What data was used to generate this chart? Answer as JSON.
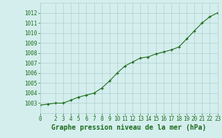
{
  "x": [
    0,
    1,
    2,
    3,
    4,
    5,
    6,
    7,
    8,
    9,
    10,
    11,
    12,
    13,
    14,
    15,
    16,
    17,
    18,
    19,
    20,
    21,
    22,
    23
  ],
  "y": [
    1002.8,
    1002.9,
    1003.0,
    1003.0,
    1003.3,
    1003.6,
    1003.8,
    1004.0,
    1004.5,
    1005.2,
    1006.0,
    1006.7,
    1007.1,
    1007.5,
    1007.6,
    1007.9,
    1008.1,
    1008.3,
    1008.6,
    1009.4,
    1010.2,
    1011.0,
    1011.6,
    1012.0
  ],
  "line_color": "#1a6b1a",
  "marker": "+",
  "marker_color": "#1a6b1a",
  "bg_color": "#d4eeed",
  "grid_color": "#b0cece",
  "title": "Graphe pression niveau de la mer (hPa)",
  "title_color": "#1a6b1a",
  "ylim": [
    1002,
    1013
  ],
  "xlim": [
    0,
    23
  ],
  "yticks": [
    1003,
    1004,
    1005,
    1006,
    1007,
    1008,
    1009,
    1010,
    1011,
    1012
  ],
  "xticks": [
    0,
    2,
    3,
    4,
    5,
    6,
    7,
    8,
    9,
    10,
    11,
    12,
    13,
    14,
    15,
    16,
    17,
    18,
    19,
    20,
    21,
    22,
    23
  ],
  "tick_color": "#1a6b1a",
  "tick_fontsize": 5.5,
  "title_fontsize": 7.0,
  "linewidth": 0.8,
  "markersize": 3.5
}
